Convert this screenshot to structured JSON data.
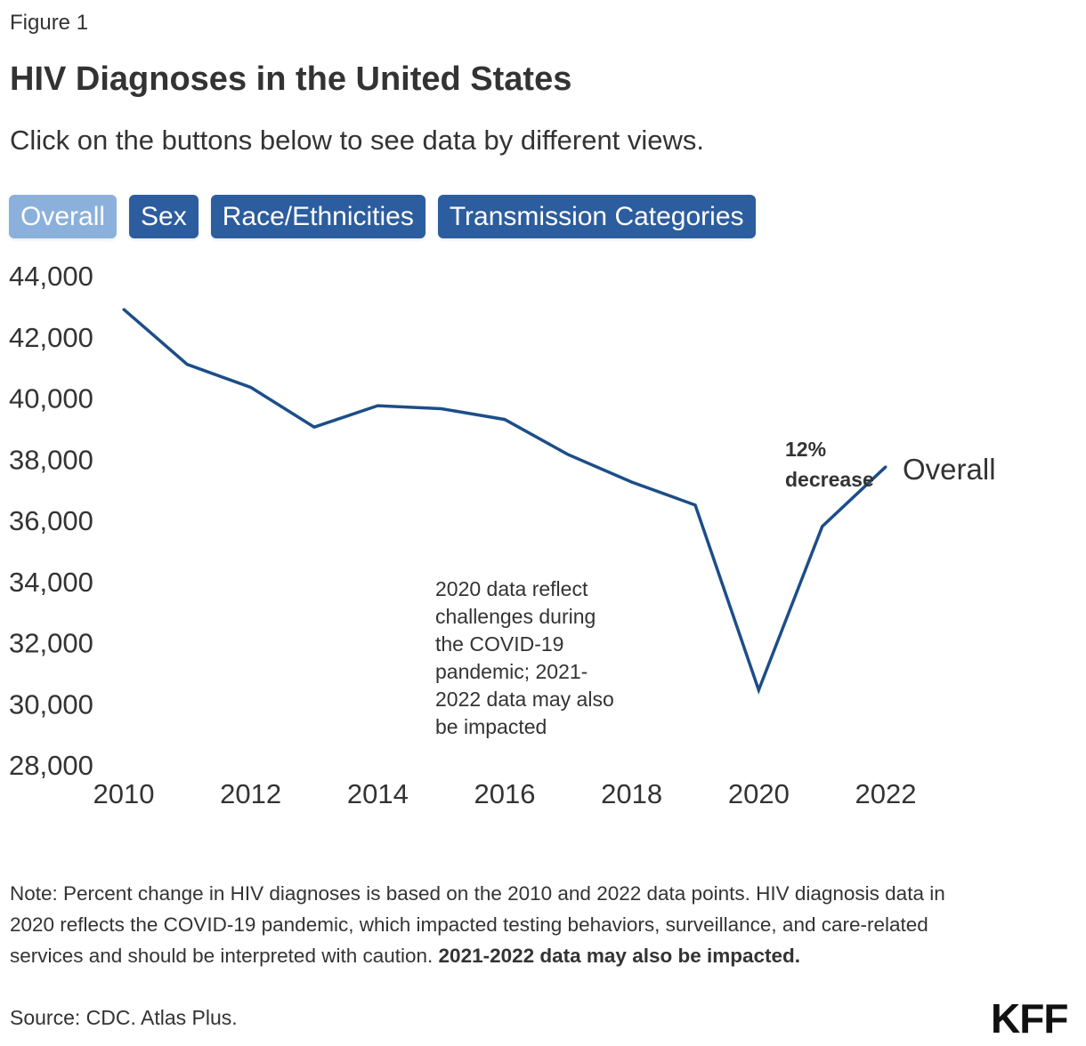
{
  "header": {
    "figure_label": "Figure 1",
    "title": "HIV Diagnoses in the United States",
    "subtitle": "Click on the buttons below to see data by different views."
  },
  "buttons": [
    {
      "label": "Overall",
      "active": true
    },
    {
      "label": "Sex",
      "active": false
    },
    {
      "label": "Race/Ethnicities",
      "active": false
    },
    {
      "label": "Transmission Categories",
      "active": false
    }
  ],
  "chart_data": {
    "type": "line",
    "title": "HIV Diagnoses in the United States",
    "xlabel": "",
    "ylabel": "",
    "x": [
      2010,
      2011,
      2012,
      2013,
      2014,
      2015,
      2016,
      2017,
      2018,
      2019,
      2020,
      2021,
      2022
    ],
    "series": [
      {
        "name": "Overall",
        "values": [
          42900,
          41100,
          40350,
          39050,
          39750,
          39650,
          39300,
          38150,
          37250,
          36500,
          30450,
          35800,
          37750
        ],
        "color": "#1c4e88"
      }
    ],
    "xlim": [
      2010,
      2022
    ],
    "ylim": [
      28000,
      44000
    ],
    "x_ticks": [
      2010,
      2012,
      2014,
      2016,
      2018,
      2020,
      2022
    ],
    "y_ticks": [
      28000,
      30000,
      32000,
      34000,
      36000,
      38000,
      40000,
      42000,
      44000
    ],
    "y_tick_labels": [
      "28,000",
      "30,000",
      "32,000",
      "34,000",
      "36,000",
      "38,000",
      "40,000",
      "42,000",
      "44,000"
    ],
    "grid": false,
    "series_label": "Overall",
    "annotations": {
      "change_line1": "12%",
      "change_line2": "decrease",
      "covid_lines": [
        "2020 data reflect",
        "challenges during",
        "the COVID-19",
        "pandemic; 2021-",
        "2022 data may also",
        "be impacted"
      ]
    }
  },
  "footer": {
    "note_text": "Note: Percent change in HIV diagnoses is based on the 2010 and 2022 data points. HIV diagnosis data in 2020 reflects the COVID-19 pandemic, which impacted testing behaviors, surveillance, and care-related services and should be interpreted with caution.",
    "note_bold": "2021-2022 data may also be impacted.",
    "source": "Source: CDC. Atlas Plus.",
    "logo_text": "KFF"
  }
}
